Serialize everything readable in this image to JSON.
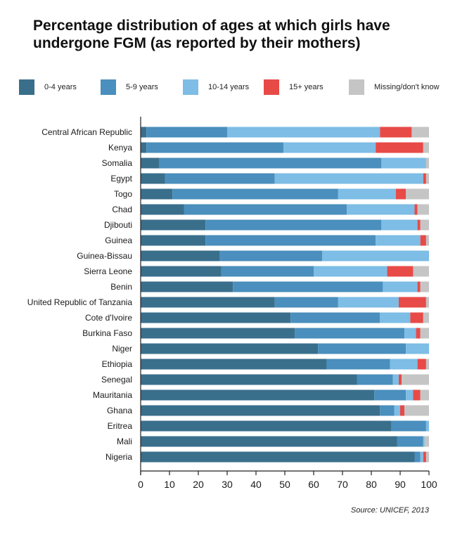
{
  "title": "Percentage distribution of ages at which girls have undergone FGM (as reported by their mothers)",
  "source": "Source: UNICEF, 2013",
  "colors": {
    "c0_4": "#3a6f8c",
    "c5_9": "#4a8fbd",
    "c10_14": "#7dbde6",
    "c15p": "#e84a47",
    "missing": "#c5c5c5"
  },
  "chart_data": {
    "type": "bar",
    "orientation": "horizontal",
    "stacked": true,
    "title": "Percentage distribution of ages at which girls have undergone FGM (as reported by their mothers)",
    "xlabel": "",
    "ylabel": "",
    "xlim": [
      0,
      100
    ],
    "xticks": [
      0,
      10,
      20,
      30,
      40,
      50,
      60,
      70,
      80,
      90,
      100
    ],
    "legend_position": "top",
    "categories": [
      "Central African Republic",
      "Kenya",
      "Somalia",
      "Egypt",
      "Togo",
      "Chad",
      "Djibouti",
      "Guinea",
      "Guinea-Bissau",
      "Sierra Leone",
      "Benin",
      "United Republic of Tanzania",
      "Cote d'Ivoire",
      "Burkina Faso",
      "Niger",
      "Ethiopia",
      "Senegal",
      "Mauritania",
      "Ghana",
      "Eritrea",
      "Mali",
      "Nigeria"
    ],
    "series": [
      {
        "name": "0-4 years",
        "color": "#3a6f8c",
        "values": [
          2,
          2,
          6.5,
          8.5,
          11,
          15,
          22.5,
          22.5,
          27.5,
          28,
          32,
          46.5,
          52,
          53.5,
          61.5,
          64.5,
          75,
          81,
          83,
          87,
          89,
          95
        ]
      },
      {
        "name": "5-9 years",
        "color": "#4a8fbd",
        "values": [
          28,
          47.5,
          77,
          38,
          57.5,
          56.5,
          61,
          59,
          35.5,
          32,
          52,
          22,
          31,
          38,
          30.5,
          22,
          12.5,
          11,
          5,
          12,
          9,
          2
        ]
      },
      {
        "name": "10-14 years",
        "color": "#7dbde6",
        "values": [
          53,
          32,
          15.5,
          51.5,
          20,
          23.5,
          12.5,
          15.5,
          37,
          25.5,
          12,
          21,
          10.5,
          4,
          8,
          9.5,
          2,
          2.5,
          2,
          1,
          0.5,
          1
        ]
      },
      {
        "name": "15+ years",
        "color": "#e84a47",
        "values": [
          11,
          16.5,
          0,
          1,
          3.5,
          1,
          1,
          2,
          0,
          9,
          1,
          9.5,
          4.5,
          1.5,
          0,
          3,
          1,
          2.5,
          1.5,
          0,
          0,
          1
        ]
      },
      {
        "name": "Missing/don't know",
        "color": "#c5c5c5",
        "values": [
          6,
          2,
          1,
          1,
          8,
          4,
          3,
          1,
          0,
          5.5,
          3,
          1,
          2,
          3,
          0,
          1,
          9.5,
          3,
          8.5,
          0,
          1.5,
          1
        ]
      }
    ]
  }
}
